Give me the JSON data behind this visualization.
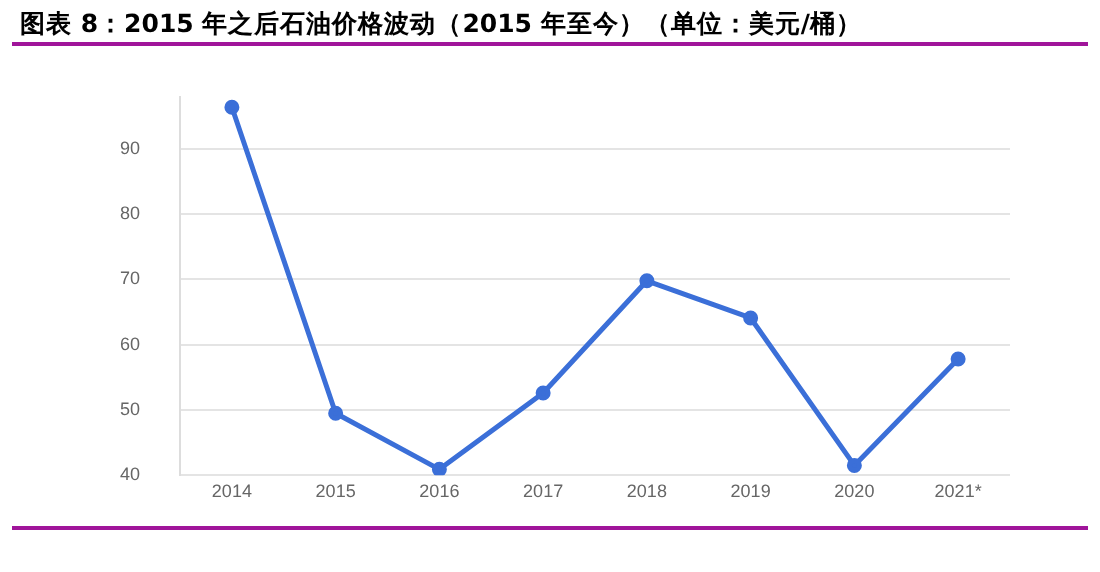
{
  "chart_data": {
    "type": "line",
    "title": "图表 8：2015 年之后石油价格波动（2015 年至今）（单位：美元/桶）",
    "categories": [
      "2014",
      "2015",
      "2016",
      "2017",
      "2018",
      "2019",
      "2020",
      "2021*"
    ],
    "series": [
      {
        "color": "#3b6fd8",
        "values": [
          96.4,
          49.5,
          40.9,
          52.6,
          69.8,
          64.1,
          41.5,
          57.8
        ]
      }
    ],
    "ylim": [
      40,
      98
    ],
    "yticks": [
      40,
      50,
      60,
      70,
      80,
      90
    ],
    "grid": "y",
    "legend": false,
    "marker": "circle",
    "line_style": "solid"
  }
}
